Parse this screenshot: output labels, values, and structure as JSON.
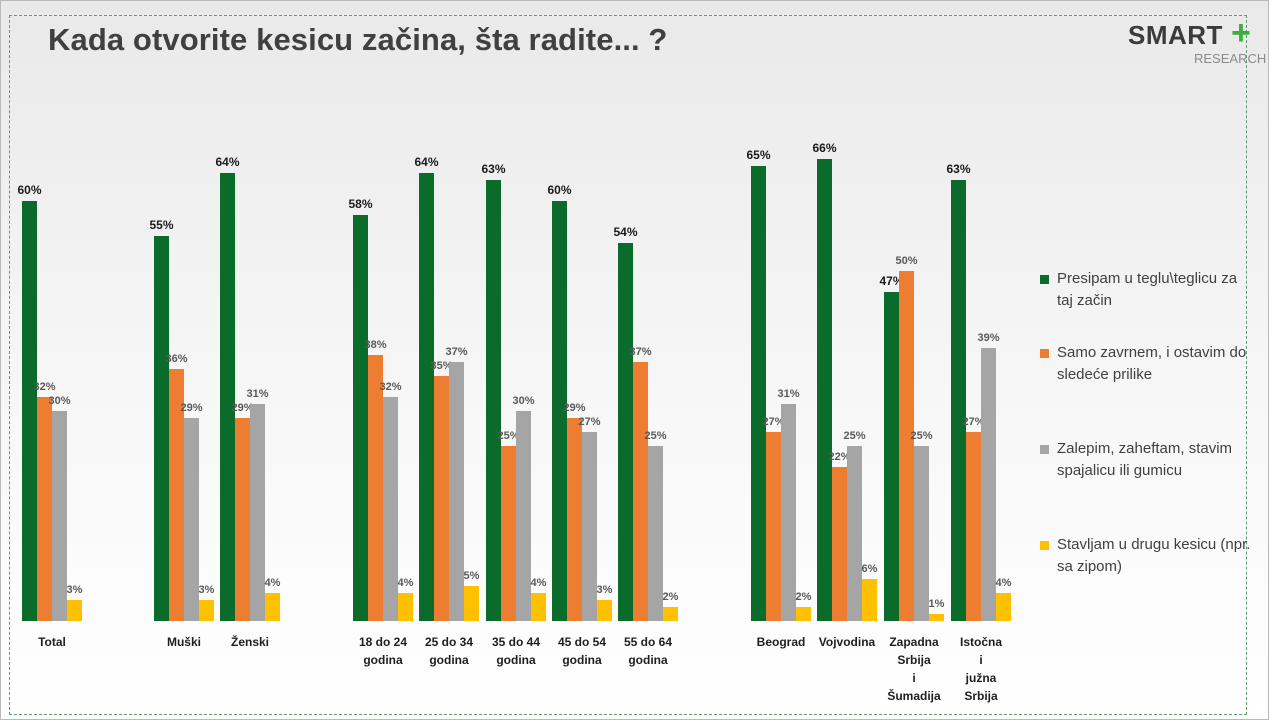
{
  "title": "Kada otvorite kesicu začina, šta radite... ?",
  "logo": {
    "main": "SMART",
    "plus": "+",
    "sub": "RESEARCH"
  },
  "colors": {
    "green": "#0b6b2a",
    "orange": "#ed7d31",
    "gray": "#a5a5a5",
    "yellow": "#ffc000",
    "text": "#404040"
  },
  "chart_data": {
    "type": "bar",
    "title": "Kada otvorite kesicu začina, šta radite... ?",
    "xlabel": "",
    "ylabel": "",
    "ylim": [
      0,
      70
    ],
    "grid": false,
    "legend_position": "right",
    "value_suffix": "%",
    "categories": [
      "Total",
      "Muški",
      "Ženski",
      "18 do 24 godina",
      "25 do 34 godina",
      "35 do 44 godina",
      "45 do 54 godina",
      "55 do 64 godina",
      "Beograd",
      "Vojvodina",
      "Zapadna Srbija i Šumadija",
      "Istočna i južna Srbija"
    ],
    "category_label_lines": [
      [
        "Total"
      ],
      [
        "Muški"
      ],
      [
        "Ženski"
      ],
      [
        "18 do 24",
        "godina"
      ],
      [
        "25 do 34",
        "godina"
      ],
      [
        "35 do 44",
        "godina"
      ],
      [
        "45 do 54",
        "godina"
      ],
      [
        "55 do 64",
        "godina"
      ],
      [
        "Beograd"
      ],
      [
        "Vojvodina"
      ],
      [
        "Zapadna",
        "Srbija",
        "i",
        "Šumadija"
      ],
      [
        "Istočna",
        "i",
        "južna",
        "Srbija"
      ]
    ],
    "series": [
      {
        "name": "Presipam u teglu\\teglicu za taj začin",
        "color": "#0b6b2a",
        "values": [
          60,
          55,
          64,
          58,
          64,
          63,
          60,
          54,
          65,
          66,
          47,
          63
        ]
      },
      {
        "name": "Samo zavrnem, i ostavim do sledeće prilike",
        "color": "#ed7d31",
        "values": [
          32,
          36,
          29,
          38,
          35,
          25,
          29,
          37,
          27,
          22,
          50,
          27
        ]
      },
      {
        "name": "Zalepim, zaheftam, stavim spajalicu ili gumicu",
        "color": "#a5a5a5",
        "values": [
          30,
          29,
          31,
          32,
          37,
          30,
          27,
          25,
          31,
          25,
          25,
          39
        ]
      },
      {
        "name": "Stavljam u drugu kesicu (npr. sa zipom)",
        "color": "#ffc000",
        "values": [
          3,
          3,
          4,
          4,
          5,
          4,
          3,
          2,
          2,
          6,
          1,
          4
        ]
      }
    ]
  }
}
